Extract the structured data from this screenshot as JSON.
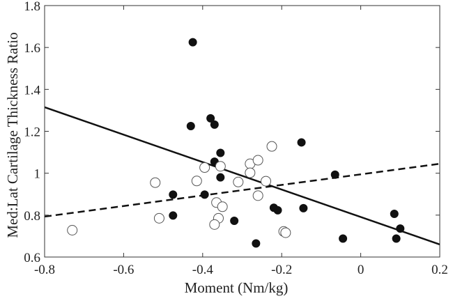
{
  "chart_data": {
    "type": "scatter",
    "title": "",
    "xlabel": "Moment (Nm/kg)",
    "ylabel": "Med:Lat Cartilage Thickness Ratio",
    "xlim": [
      -0.8,
      0.2
    ],
    "ylim": [
      0.6,
      1.8
    ],
    "x_ticks": [
      "-0.8",
      "-0.6",
      "-0.4",
      "-0.2",
      "0",
      "0.2"
    ],
    "y_ticks": [
      "0.6",
      "0.8",
      "1",
      "1.2",
      "1.4",
      "1.6",
      "1.8"
    ],
    "grid": false,
    "legend": "none",
    "series": [
      {
        "marker": "filled-circle",
        "color": "#111111",
        "points": [
          [
            -0.425,
            1.625
          ],
          [
            -0.43,
            1.225
          ],
          [
            -0.38,
            1.262
          ],
          [
            -0.37,
            1.232
          ],
          [
            -0.355,
            1.097
          ],
          [
            -0.37,
            1.055
          ],
          [
            -0.355,
            0.98
          ],
          [
            -0.475,
            0.898
          ],
          [
            -0.395,
            0.898
          ],
          [
            -0.475,
            0.798
          ],
          [
            -0.32,
            0.773
          ],
          [
            -0.265,
            0.665
          ],
          [
            -0.22,
            0.835
          ],
          [
            -0.21,
            0.823
          ],
          [
            -0.15,
            1.147
          ],
          [
            -0.145,
            0.833
          ],
          [
            -0.065,
            0.993
          ],
          [
            -0.045,
            0.688
          ],
          [
            0.085,
            0.806
          ],
          [
            0.09,
            0.688
          ],
          [
            0.1,
            0.736
          ]
        ],
        "fit_line": {
          "style": "solid",
          "from": [
            -0.8,
            1.315
          ],
          "to": [
            0.2,
            0.66
          ]
        }
      },
      {
        "marker": "open-circle",
        "color": "#222222",
        "points": [
          [
            -0.73,
            0.728
          ],
          [
            -0.52,
            0.955
          ],
          [
            -0.51,
            0.785
          ],
          [
            -0.415,
            0.963
          ],
          [
            -0.395,
            1.027
          ],
          [
            -0.355,
            1.033
          ],
          [
            -0.365,
            0.86
          ],
          [
            -0.35,
            0.84
          ],
          [
            -0.36,
            0.785
          ],
          [
            -0.37,
            0.755
          ],
          [
            -0.31,
            0.958
          ],
          [
            -0.28,
            1.045
          ],
          [
            -0.28,
            1.002
          ],
          [
            -0.26,
            1.062
          ],
          [
            -0.26,
            0.893
          ],
          [
            -0.225,
            1.128
          ],
          [
            -0.24,
            0.962
          ],
          [
            -0.195,
            0.722
          ],
          [
            -0.19,
            0.716
          ]
        ],
        "fit_line": {
          "style": "dashed",
          "from": [
            -0.8,
            0.793
          ],
          "to": [
            0.2,
            1.045
          ]
        }
      }
    ]
  }
}
